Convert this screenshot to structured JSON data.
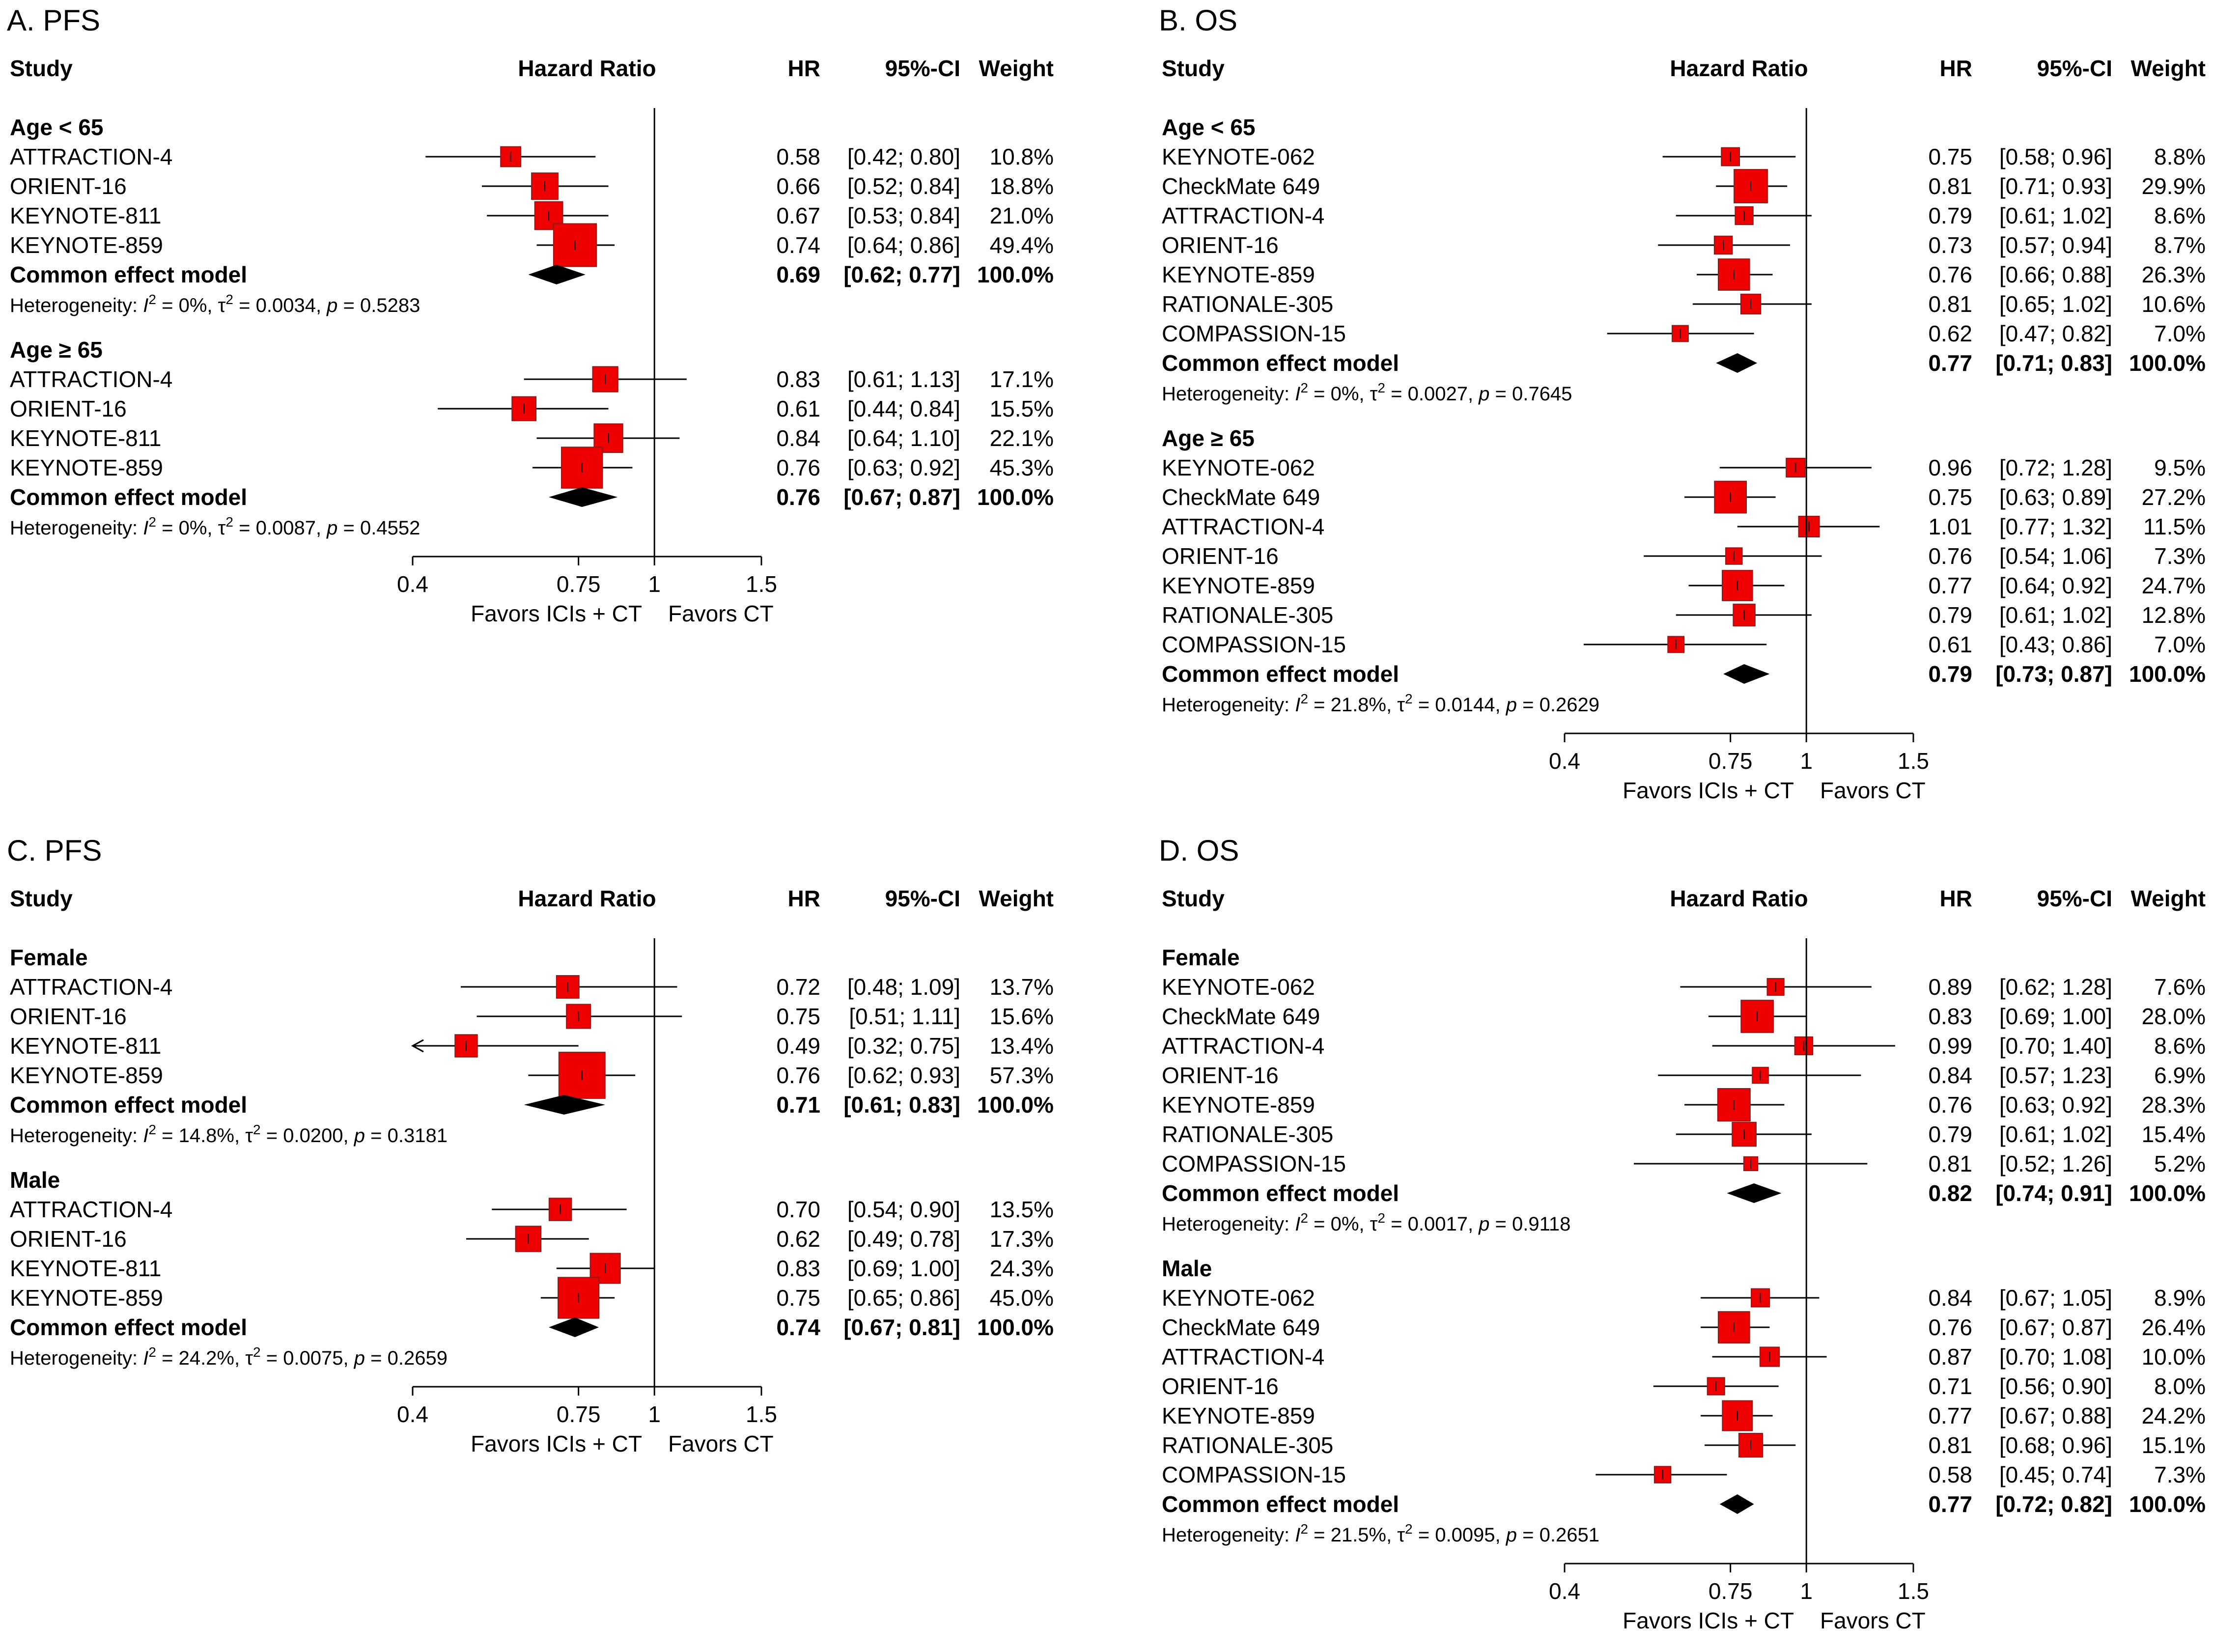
{
  "figure": {
    "colors": {
      "marker": "#ee0000",
      "marker_edge": "#8b1a1a",
      "diamond": "#000000",
      "line": "#000000"
    },
    "columns": {
      "study": "Study",
      "plot": "Hazard Ratio",
      "hr": "HR",
      "ci": "95%-CI",
      "weight": "Weight"
    },
    "axis": {
      "ticks": [
        0.4,
        0.75,
        1,
        1.5
      ],
      "tick_labels": [
        "0.4",
        "0.75",
        "1",
        "1.5"
      ],
      "reference": 1
    },
    "favors_left": "Favors ICIs + CT",
    "favors_right": "Favors CT"
  },
  "chart_data": [
    {
      "type": "forest",
      "title": "A. PFS",
      "groups": [
        {
          "label": "Age < 65",
          "studies": [
            {
              "name": "ATTRACTION-4",
              "hr": 0.58,
              "lo": 0.42,
              "hi": 0.8,
              "hr_text": "0.58",
              "ci_text": "[0.42; 0.80]",
              "weight": 10.8,
              "weight_text": "10.8%"
            },
            {
              "name": "ORIENT-16",
              "hr": 0.66,
              "lo": 0.52,
              "hi": 0.84,
              "hr_text": "0.66",
              "ci_text": "[0.52; 0.84]",
              "weight": 18.8,
              "weight_text": "18.8%"
            },
            {
              "name": "KEYNOTE-811",
              "hr": 0.67,
              "lo": 0.53,
              "hi": 0.84,
              "hr_text": "0.67",
              "ci_text": "[0.53; 0.84]",
              "weight": 21.0,
              "weight_text": "21.0%"
            },
            {
              "name": "KEYNOTE-859",
              "hr": 0.74,
              "lo": 0.64,
              "hi": 0.86,
              "hr_text": "0.74",
              "ci_text": "[0.64; 0.86]",
              "weight": 49.4,
              "weight_text": "49.4%"
            }
          ],
          "summary": {
            "label": "Common effect model",
            "hr": 0.69,
            "lo": 0.62,
            "hi": 0.77,
            "hr_text": "0.69",
            "ci_text": "[0.62; 0.77]",
            "weight_text": "100.0%"
          },
          "heterogeneity": {
            "prefix": "Heterogeneity: ",
            "i2": "0%",
            "tau2": "0.0034",
            "p": "0.5283"
          }
        },
        {
          "label": "Age ≥ 65",
          "studies": [
            {
              "name": "ATTRACTION-4",
              "hr": 0.83,
              "lo": 0.61,
              "hi": 1.13,
              "hr_text": "0.83",
              "ci_text": "[0.61; 1.13]",
              "weight": 17.1,
              "weight_text": "17.1%"
            },
            {
              "name": "ORIENT-16",
              "hr": 0.61,
              "lo": 0.44,
              "hi": 0.84,
              "hr_text": "0.61",
              "ci_text": "[0.44; 0.84]",
              "weight": 15.5,
              "weight_text": "15.5%"
            },
            {
              "name": "KEYNOTE-811",
              "hr": 0.84,
              "lo": 0.64,
              "hi": 1.1,
              "hr_text": "0.84",
              "ci_text": "[0.64; 1.10]",
              "weight": 22.1,
              "weight_text": "22.1%"
            },
            {
              "name": "KEYNOTE-859",
              "hr": 0.76,
              "lo": 0.63,
              "hi": 0.92,
              "hr_text": "0.76",
              "ci_text": "[0.63; 0.92]",
              "weight": 45.3,
              "weight_text": "45.3%"
            }
          ],
          "summary": {
            "label": "Common effect model",
            "hr": 0.76,
            "lo": 0.67,
            "hi": 0.87,
            "hr_text": "0.76",
            "ci_text": "[0.67; 0.87]",
            "weight_text": "100.0%"
          },
          "heterogeneity": {
            "prefix": "Heterogeneity: ",
            "i2": "0%",
            "tau2": "0.0087",
            "p": "0.4552"
          }
        }
      ]
    },
    {
      "type": "forest",
      "title": "B. OS",
      "groups": [
        {
          "label": "Age < 65",
          "studies": [
            {
              "name": "KEYNOTE-062",
              "hr": 0.75,
              "lo": 0.58,
              "hi": 0.96,
              "hr_text": "0.75",
              "ci_text": "[0.58; 0.96]",
              "weight": 8.8,
              "weight_text": "8.8%"
            },
            {
              "name": "CheckMate 649",
              "hr": 0.81,
              "lo": 0.71,
              "hi": 0.93,
              "hr_text": "0.81",
              "ci_text": "[0.71; 0.93]",
              "weight": 29.9,
              "weight_text": "29.9%"
            },
            {
              "name": "ATTRACTION-4",
              "hr": 0.79,
              "lo": 0.61,
              "hi": 1.02,
              "hr_text": "0.79",
              "ci_text": "[0.61; 1.02]",
              "weight": 8.6,
              "weight_text": "8.6%"
            },
            {
              "name": "ORIENT-16",
              "hr": 0.73,
              "lo": 0.57,
              "hi": 0.94,
              "hr_text": "0.73",
              "ci_text": "[0.57; 0.94]",
              "weight": 8.7,
              "weight_text": "8.7%"
            },
            {
              "name": "KEYNOTE-859",
              "hr": 0.76,
              "lo": 0.66,
              "hi": 0.88,
              "hr_text": "0.76",
              "ci_text": "[0.66; 0.88]",
              "weight": 26.3,
              "weight_text": "26.3%"
            },
            {
              "name": "RATIONALE-305",
              "hr": 0.81,
              "lo": 0.65,
              "hi": 1.02,
              "hr_text": "0.81",
              "ci_text": "[0.65; 1.02]",
              "weight": 10.6,
              "weight_text": "10.6%"
            },
            {
              "name": "COMPASSION-15",
              "hr": 0.62,
              "lo": 0.47,
              "hi": 0.82,
              "hr_text": "0.62",
              "ci_text": "[0.47; 0.82]",
              "weight": 7.0,
              "weight_text": "7.0%"
            }
          ],
          "summary": {
            "label": "Common effect model",
            "hr": 0.77,
            "lo": 0.71,
            "hi": 0.83,
            "hr_text": "0.77",
            "ci_text": "[0.71; 0.83]",
            "weight_text": "100.0%"
          },
          "heterogeneity": {
            "prefix": "Heterogeneity: ",
            "i2": "0%",
            "tau2": "0.0027",
            "p": "0.7645"
          }
        },
        {
          "label": "Age ≥ 65",
          "studies": [
            {
              "name": "KEYNOTE-062",
              "hr": 0.96,
              "lo": 0.72,
              "hi": 1.28,
              "hr_text": "0.96",
              "ci_text": "[0.72; 1.28]",
              "weight": 9.5,
              "weight_text": "9.5%"
            },
            {
              "name": "CheckMate 649",
              "hr": 0.75,
              "lo": 0.63,
              "hi": 0.89,
              "hr_text": "0.75",
              "ci_text": "[0.63; 0.89]",
              "weight": 27.2,
              "weight_text": "27.2%"
            },
            {
              "name": "ATTRACTION-4",
              "hr": 1.01,
              "lo": 0.77,
              "hi": 1.32,
              "hr_text": "1.01",
              "ci_text": "[0.77; 1.32]",
              "weight": 11.5,
              "weight_text": "11.5%"
            },
            {
              "name": "ORIENT-16",
              "hr": 0.76,
              "lo": 0.54,
              "hi": 1.06,
              "hr_text": "0.76",
              "ci_text": "[0.54; 1.06]",
              "weight": 7.3,
              "weight_text": "7.3%"
            },
            {
              "name": "KEYNOTE-859",
              "hr": 0.77,
              "lo": 0.64,
              "hi": 0.92,
              "hr_text": "0.77",
              "ci_text": "[0.64; 0.92]",
              "weight": 24.7,
              "weight_text": "24.7%"
            },
            {
              "name": "RATIONALE-305",
              "hr": 0.79,
              "lo": 0.61,
              "hi": 1.02,
              "hr_text": "0.79",
              "ci_text": "[0.61; 1.02]",
              "weight": 12.8,
              "weight_text": "12.8%"
            },
            {
              "name": "COMPASSION-15",
              "hr": 0.61,
              "lo": 0.43,
              "hi": 0.86,
              "hr_text": "0.61",
              "ci_text": "[0.43; 0.86]",
              "weight": 7.0,
              "weight_text": "7.0%"
            }
          ],
          "summary": {
            "label": "Common effect model",
            "hr": 0.79,
            "lo": 0.73,
            "hi": 0.87,
            "hr_text": "0.79",
            "ci_text": "[0.73; 0.87]",
            "weight_text": "100.0%"
          },
          "heterogeneity": {
            "prefix": "Heterogeneity: ",
            "i2": "21.8%",
            "tau2": "0.0144",
            "p": "0.2629"
          }
        }
      ]
    },
    {
      "type": "forest",
      "title": "C. PFS",
      "groups": [
        {
          "label": "Female",
          "studies": [
            {
              "name": "ATTRACTION-4",
              "hr": 0.72,
              "lo": 0.48,
              "hi": 1.09,
              "hr_text": "0.72",
              "ci_text": "[0.48; 1.09]",
              "weight": 13.7,
              "weight_text": "13.7%"
            },
            {
              "name": "ORIENT-16",
              "hr": 0.75,
              "lo": 0.51,
              "hi": 1.11,
              "hr_text": "0.75",
              "ci_text": "[0.51; 1.11]",
              "weight": 15.6,
              "weight_text": "15.6%"
            },
            {
              "name": "KEYNOTE-811",
              "hr": 0.49,
              "lo": 0.32,
              "hi": 0.75,
              "hr_text": "0.49",
              "ci_text": "[0.32; 0.75]",
              "weight": 13.4,
              "weight_text": "13.4%"
            },
            {
              "name": "KEYNOTE-859",
              "hr": 0.76,
              "lo": 0.62,
              "hi": 0.93,
              "hr_text": "0.76",
              "ci_text": "[0.62; 0.93]",
              "weight": 57.3,
              "weight_text": "57.3%"
            }
          ],
          "summary": {
            "label": "Common effect model",
            "hr": 0.71,
            "lo": 0.61,
            "hi": 0.83,
            "hr_text": "0.71",
            "ci_text": "[0.61; 0.83]",
            "weight_text": "100.0%"
          },
          "heterogeneity": {
            "prefix": "Heterogeneity: ",
            "i2": "14.8%",
            "tau2": "0.0200",
            "p": "0.3181"
          }
        },
        {
          "label": "Male",
          "studies": [
            {
              "name": "ATTRACTION-4",
              "hr": 0.7,
              "lo": 0.54,
              "hi": 0.9,
              "hr_text": "0.70",
              "ci_text": "[0.54; 0.90]",
              "weight": 13.5,
              "weight_text": "13.5%"
            },
            {
              "name": "ORIENT-16",
              "hr": 0.62,
              "lo": 0.49,
              "hi": 0.78,
              "hr_text": "0.62",
              "ci_text": "[0.49; 0.78]",
              "weight": 17.3,
              "weight_text": "17.3%"
            },
            {
              "name": "KEYNOTE-811",
              "hr": 0.83,
              "lo": 0.69,
              "hi": 1.0,
              "hr_text": "0.83",
              "ci_text": "[0.69; 1.00]",
              "weight": 24.3,
              "weight_text": "24.3%"
            },
            {
              "name": "KEYNOTE-859",
              "hr": 0.75,
              "lo": 0.65,
              "hi": 0.86,
              "hr_text": "0.75",
              "ci_text": "[0.65; 0.86]",
              "weight": 45.0,
              "weight_text": "45.0%"
            }
          ],
          "summary": {
            "label": "Common effect model",
            "hr": 0.74,
            "lo": 0.67,
            "hi": 0.81,
            "hr_text": "0.74",
            "ci_text": "[0.67; 0.81]",
            "weight_text": "100.0%"
          },
          "heterogeneity": {
            "prefix": "Heterogeneity: ",
            "i2": "24.2%",
            "tau2": "0.0075",
            "p": "0.2659"
          }
        }
      ]
    },
    {
      "type": "forest",
      "title": "D. OS",
      "groups": [
        {
          "label": "Female",
          "studies": [
            {
              "name": "KEYNOTE-062",
              "hr": 0.89,
              "lo": 0.62,
              "hi": 1.28,
              "hr_text": "0.89",
              "ci_text": "[0.62; 1.28]",
              "weight": 7.6,
              "weight_text": "7.6%"
            },
            {
              "name": "CheckMate 649",
              "hr": 0.83,
              "lo": 0.69,
              "hi": 1.0,
              "hr_text": "0.83",
              "ci_text": "[0.69; 1.00]",
              "weight": 28.0,
              "weight_text": "28.0%"
            },
            {
              "name": "ATTRACTION-4",
              "hr": 0.99,
              "lo": 0.7,
              "hi": 1.4,
              "hr_text": "0.99",
              "ci_text": "[0.70; 1.40]",
              "weight": 8.6,
              "weight_text": "8.6%"
            },
            {
              "name": "ORIENT-16",
              "hr": 0.84,
              "lo": 0.57,
              "hi": 1.23,
              "hr_text": "0.84",
              "ci_text": "[0.57; 1.23]",
              "weight": 6.9,
              "weight_text": "6.9%"
            },
            {
              "name": "KEYNOTE-859",
              "hr": 0.76,
              "lo": 0.63,
              "hi": 0.92,
              "hr_text": "0.76",
              "ci_text": "[0.63; 0.92]",
              "weight": 28.3,
              "weight_text": "28.3%"
            },
            {
              "name": "RATIONALE-305",
              "hr": 0.79,
              "lo": 0.61,
              "hi": 1.02,
              "hr_text": "0.79",
              "ci_text": "[0.61; 1.02]",
              "weight": 15.4,
              "weight_text": "15.4%"
            },
            {
              "name": "COMPASSION-15",
              "hr": 0.81,
              "lo": 0.52,
              "hi": 1.26,
              "hr_text": "0.81",
              "ci_text": "[0.52; 1.26]",
              "weight": 5.2,
              "weight_text": "5.2%"
            }
          ],
          "summary": {
            "label": "Common effect model",
            "hr": 0.82,
            "lo": 0.74,
            "hi": 0.91,
            "hr_text": "0.82",
            "ci_text": "[0.74; 0.91]",
            "weight_text": "100.0%"
          },
          "heterogeneity": {
            "prefix": "Heterogeneity: ",
            "i2": "0%",
            "tau2": "0.0017",
            "p": "0.9118"
          }
        },
        {
          "label": "Male",
          "studies": [
            {
              "name": "KEYNOTE-062",
              "hr": 0.84,
              "lo": 0.67,
              "hi": 1.05,
              "hr_text": "0.84",
              "ci_text": "[0.67; 1.05]",
              "weight": 8.9,
              "weight_text": "8.9%"
            },
            {
              "name": "CheckMate 649",
              "hr": 0.76,
              "lo": 0.67,
              "hi": 0.87,
              "hr_text": "0.76",
              "ci_text": "[0.67; 0.87]",
              "weight": 26.4,
              "weight_text": "26.4%"
            },
            {
              "name": "ATTRACTION-4",
              "hr": 0.87,
              "lo": 0.7,
              "hi": 1.08,
              "hr_text": "0.87",
              "ci_text": "[0.70; 1.08]",
              "weight": 10.0,
              "weight_text": "10.0%"
            },
            {
              "name": "ORIENT-16",
              "hr": 0.71,
              "lo": 0.56,
              "hi": 0.9,
              "hr_text": "0.71",
              "ci_text": "[0.56; 0.90]",
              "weight": 8.0,
              "weight_text": "8.0%"
            },
            {
              "name": "KEYNOTE-859",
              "hr": 0.77,
              "lo": 0.67,
              "hi": 0.88,
              "hr_text": "0.77",
              "ci_text": "[0.67; 0.88]",
              "weight": 24.2,
              "weight_text": "24.2%"
            },
            {
              "name": "RATIONALE-305",
              "hr": 0.81,
              "lo": 0.68,
              "hi": 0.96,
              "hr_text": "0.81",
              "ci_text": "[0.68; 0.96]",
              "weight": 15.1,
              "weight_text": "15.1%"
            },
            {
              "name": "COMPASSION-15",
              "hr": 0.58,
              "lo": 0.45,
              "hi": 0.74,
              "hr_text": "0.58",
              "ci_text": "[0.45; 0.74]",
              "weight": 7.3,
              "weight_text": "7.3%"
            }
          ],
          "summary": {
            "label": "Common effect model",
            "hr": 0.77,
            "lo": 0.72,
            "hi": 0.82,
            "hr_text": "0.77",
            "ci_text": "[0.72; 0.82]",
            "weight_text": "100.0%"
          },
          "heterogeneity": {
            "prefix": "Heterogeneity: ",
            "i2": "21.5%",
            "tau2": "0.0095",
            "p": "0.2651"
          }
        }
      ]
    }
  ]
}
